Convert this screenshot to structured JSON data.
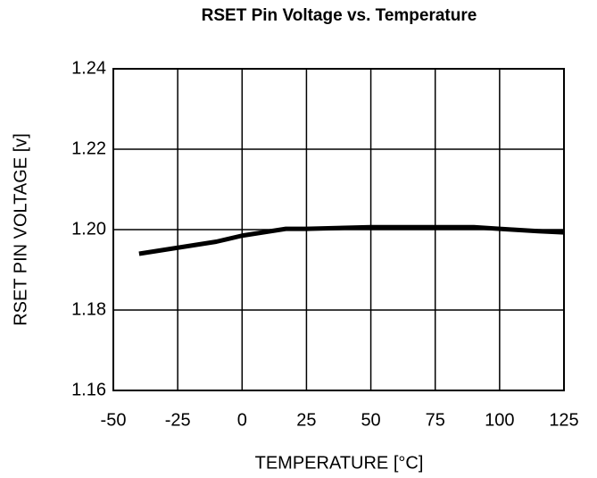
{
  "chart_data": {
    "type": "line",
    "title": "RSET Pin Voltage vs. Temperature",
    "xlabel": "TEMPERATURE [°C]",
    "ylabel": "RSET PIN VOLTAGE [v]",
    "x": [
      -40,
      -25,
      -10,
      0,
      10,
      17,
      25,
      50,
      75,
      90,
      100,
      115,
      125
    ],
    "series": [
      {
        "name": "RSET",
        "color": "#000000",
        "values": [
          1.194,
          1.1955,
          1.197,
          1.1985,
          1.1995,
          1.2002,
          1.2002,
          1.2006,
          1.2006,
          1.2006,
          1.2002,
          1.1996,
          1.1993
        ]
      }
    ],
    "xlim": [
      -50,
      125
    ],
    "xticks": [
      -50,
      -25,
      0,
      25,
      50,
      75,
      100,
      125
    ],
    "ylim": [
      1.16,
      1.24
    ],
    "yticks": [
      1.16,
      1.18,
      {
        "value": 1.2,
        "label": "1.20"
      },
      1.22,
      1.24
    ],
    "grid": true
  }
}
